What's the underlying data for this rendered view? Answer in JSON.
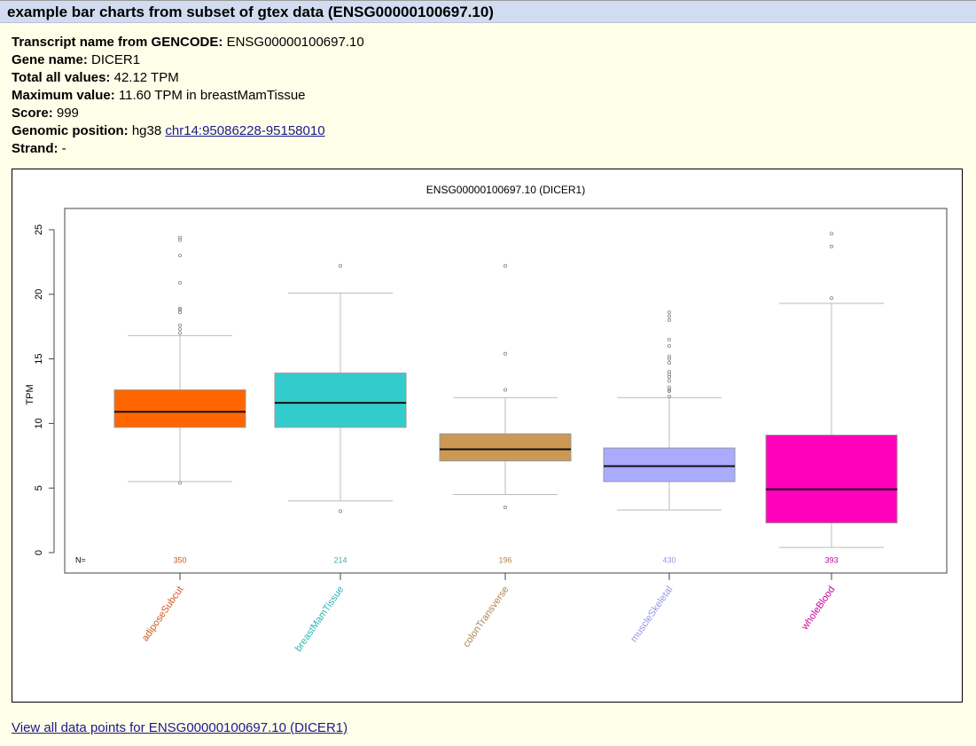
{
  "header": {
    "title": "example bar charts from subset of gtex data (ENSG00000100697.10)"
  },
  "details": [
    {
      "label": "Transcript name from GENCODE:",
      "value": "ENSG00000100697.10"
    },
    {
      "label": "Gene name:",
      "value": "DICER1"
    },
    {
      "label": "Total all values:",
      "value": "42.12 TPM"
    },
    {
      "label": "Maximum value:",
      "value": "11.60 TPM in breastMamTissue"
    },
    {
      "label": "Score:",
      "value": "999"
    },
    {
      "label": "Genomic position:",
      "value": "hg38",
      "link": "chr14:95086228-95158010"
    },
    {
      "label": "Strand:",
      "value": "-"
    }
  ],
  "footer": {
    "link_text": "View all data points for ENSG00000100697.10 (DICER1)"
  },
  "chart_data": {
    "type": "boxplot",
    "title": "ENSG00000100697.10 (DICER1)",
    "xlabel": "",
    "ylabel": "TPM",
    "ylim": [
      -1.2,
      26.5
    ],
    "yticks": [
      0,
      5,
      10,
      15,
      20,
      25
    ],
    "n_label": "N=",
    "categories": [
      "adiposeSubcut",
      "breastMamTissue",
      "colonTransverse",
      "muscleSkeletal",
      "wholeBlood"
    ],
    "series": [
      {
        "name": "adiposeSubcut",
        "color": "#ff6600",
        "label_color": "#d2591a",
        "n": 350,
        "whisker_low": 5.5,
        "q1": 9.7,
        "median": 10.9,
        "q3": 12.6,
        "whisker_high": 16.8,
        "outliers": [
          5.4,
          17.0,
          17.3,
          17.6,
          18.6,
          18.8,
          18.9,
          20.9,
          23.0,
          24.2,
          24.4
        ]
      },
      {
        "name": "breastMamTissue",
        "color": "#33cccc",
        "label_color": "#2db4b4",
        "n": 214,
        "whisker_low": 4.0,
        "q1": 9.7,
        "median": 11.6,
        "q3": 13.9,
        "whisker_high": 20.1,
        "outliers": [
          3.2,
          22.2
        ]
      },
      {
        "name": "colonTransverse",
        "color": "#cc9955",
        "label_color": "#b08450",
        "n": 196,
        "whisker_low": 4.5,
        "q1": 7.1,
        "median": 8.0,
        "q3": 9.2,
        "whisker_high": 12.0,
        "outliers": [
          3.5,
          12.6,
          15.4,
          22.2
        ]
      },
      {
        "name": "muscleSkeletal",
        "color": "#aaaaff",
        "label_color": "#9696e0",
        "n": 430,
        "whisker_low": 3.3,
        "q1": 5.5,
        "median": 6.7,
        "q3": 8.1,
        "whisker_high": 12.0,
        "outliers": [
          12.1,
          12.5,
          12.6,
          12.8,
          13.3,
          13.6,
          13.8,
          14.0,
          14.7,
          15.0,
          15.2,
          16.0,
          16.5,
          18.0,
          18.3,
          18.6
        ]
      },
      {
        "name": "wholeBlood",
        "color": "#ff00bb",
        "label_color": "#c8009a",
        "n": 393,
        "whisker_low": 0.4,
        "q1": 2.3,
        "median": 4.9,
        "q3": 9.1,
        "whisker_high": 19.3,
        "outliers": [
          19.7,
          23.7,
          24.7
        ]
      }
    ]
  }
}
